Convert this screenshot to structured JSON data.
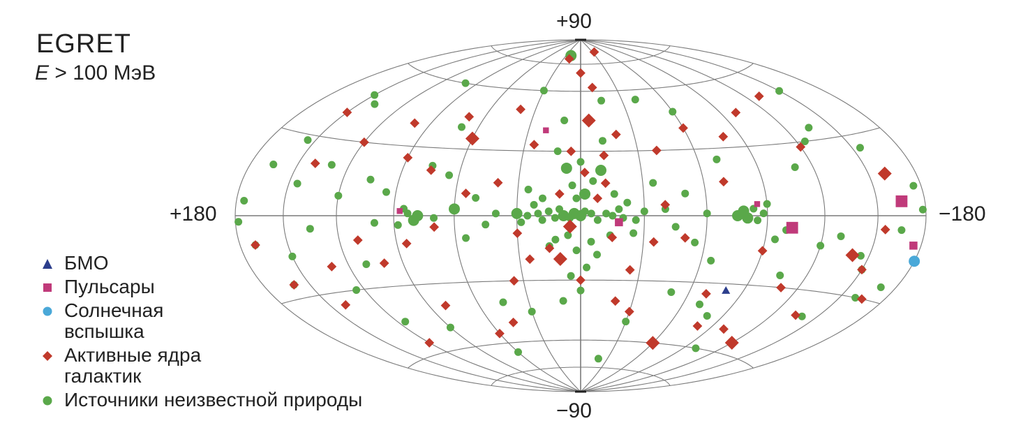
{
  "title": "EGRET",
  "subtitle": {
    "symbol": "E",
    "text": " > 100 МэВ"
  },
  "axis_labels": {
    "top": "+90",
    "bottom": "−90",
    "left": "+180",
    "right": "−180"
  },
  "colors": {
    "grid": "#7a7a7a",
    "agn": "#c0392b",
    "unknown": "#5aa84a",
    "pulsar": "#c03a7a",
    "flare": "#4aa8d8",
    "lmc": "#2c3e8c"
  },
  "legend": [
    {
      "key": "lmc",
      "shape": "triangle",
      "label_lines": [
        "БМО"
      ]
    },
    {
      "key": "pulsar",
      "shape": "square",
      "label_lines": [
        "Пульсары"
      ]
    },
    {
      "key": "flare",
      "shape": "circle",
      "label_lines": [
        "Солнечная",
        "вспышка"
      ]
    },
    {
      "key": "agn",
      "shape": "diamond",
      "label_lines": [
        "Активные ядра",
        "галактик"
      ]
    },
    {
      "key": "unknown",
      "shape": "circle",
      "label_lines": [
        "Источники неизвестной природы"
      ]
    }
  ],
  "chart_data": {
    "type": "scatter",
    "projection": "hammer-aitoff",
    "coordinates": "galactic",
    "lon_range": [
      180,
      -180
    ],
    "lat_range": [
      -90,
      90
    ],
    "grid": {
      "meridian_step_deg": 30,
      "parallel_step_deg": 30
    },
    "series": [
      {
        "name": "Источники неизвестной природы",
        "key": "unknown",
        "shape": "circle",
        "points": [
          [
            0,
            0,
            3
          ],
          [
            3,
            1,
            3
          ],
          [
            -2,
            2,
            2
          ],
          [
            5,
            -1,
            2
          ],
          [
            -5,
            1,
            2
          ],
          [
            8,
            0,
            3
          ],
          [
            10,
            3,
            2
          ],
          [
            -8,
            -2,
            2
          ],
          [
            12,
            -1,
            2
          ],
          [
            15,
            2,
            2
          ],
          [
            -12,
            1,
            2
          ],
          [
            -15,
            0,
            2
          ],
          [
            18,
            -2,
            2
          ],
          [
            20,
            1,
            2
          ],
          [
            -18,
            3,
            2
          ],
          [
            -20,
            -1,
            2
          ],
          [
            22,
            5,
            2
          ],
          [
            -22,
            6,
            2
          ],
          [
            25,
            0,
            2
          ],
          [
            28,
            -3,
            2
          ],
          [
            30,
            1,
            3
          ],
          [
            -26,
            -2,
            2
          ],
          [
            -30,
            2,
            2
          ],
          [
            2,
            8,
            2
          ],
          [
            -2,
            10,
            3
          ],
          [
            4,
            14,
            2
          ],
          [
            -6,
            16,
            2
          ],
          [
            7,
            22,
            3
          ],
          [
            -10,
            21,
            3
          ],
          [
            0,
            25,
            2
          ],
          [
            6,
            -9,
            2
          ],
          [
            -5,
            -12,
            2
          ],
          [
            2,
            -16,
            2
          ],
          [
            -8,
            -18,
            2
          ],
          [
            12,
            -11,
            2
          ],
          [
            15,
            -14,
            2
          ],
          [
            -14,
            -9,
            2
          ],
          [
            -3,
            -24,
            2
          ],
          [
            5,
            -28,
            2
          ],
          [
            18,
            8,
            2
          ],
          [
            -16,
            10,
            2
          ],
          [
            25,
            12,
            2
          ],
          [
            -25,
            -8,
            2
          ],
          [
            12,
            30,
            2
          ],
          [
            -12,
            35,
            2
          ],
          [
            40,
            1,
            2
          ],
          [
            45,
            -4,
            2
          ],
          [
            -40,
            3,
            2
          ],
          [
            -45,
            -5,
            2
          ],
          [
            50,
            8,
            2
          ],
          [
            55,
            -10,
            2
          ],
          [
            -50,
            10,
            2
          ],
          [
            -55,
            -12,
            2
          ],
          [
            60,
            3,
            3
          ],
          [
            65,
            18,
            2
          ],
          [
            -60,
            1,
            2
          ],
          [
            -65,
            -20,
            2
          ],
          [
            70,
            -1,
            2
          ],
          [
            75,
            22,
            2
          ],
          [
            -70,
            25,
            2
          ],
          [
            78,
            0,
            3
          ],
          [
            80,
            -2,
            3
          ],
          [
            83,
            1,
            2
          ],
          [
            85,
            3,
            2
          ],
          [
            88,
            -4,
            2
          ],
          [
            -75,
            0,
            3
          ],
          [
            -78,
            2,
            3
          ],
          [
            -80,
            -1,
            3
          ],
          [
            -83,
            3,
            2
          ],
          [
            -85,
            -2,
            2
          ],
          [
            -88,
            1,
            2
          ],
          [
            -90,
            5,
            2
          ],
          [
            95,
            10,
            2
          ],
          [
            100,
            -3,
            2
          ],
          [
            -95,
            -10,
            2
          ],
          [
            -100,
            -6,
            2
          ],
          [
            105,
            15,
            2
          ],
          [
            110,
            -20,
            2
          ],
          [
            -110,
            20,
            2
          ],
          [
            -105,
            -25,
            2
          ],
          [
            120,
            8,
            2
          ],
          [
            -120,
            -12,
            2
          ],
          [
            125,
            -30,
            2
          ],
          [
            -125,
            30,
            2
          ],
          [
            130,
            20,
            2
          ],
          [
            135,
            -5,
            2
          ],
          [
            -130,
            -8,
            2
          ],
          [
            -135,
            35,
            2
          ],
          [
            140,
            45,
            2
          ],
          [
            -140,
            -40,
            2
          ],
          [
            145,
            12,
            2
          ],
          [
            150,
            -15,
            2
          ],
          [
            -145,
            -15,
            2
          ],
          [
            -150,
            -20,
            2
          ],
          [
            155,
            28,
            2
          ],
          [
            160,
            -25,
            2
          ],
          [
            -155,
            25,
            2
          ],
          [
            -160,
            -30,
            2
          ],
          [
            165,
            18,
            2
          ],
          [
            170,
            -10,
            2
          ],
          [
            175,
            5,
            2
          ],
          [
            -165,
            -5,
            2
          ],
          [
            -170,
            -25,
            2
          ],
          [
            -175,
            10,
            2
          ],
          [
            20,
            80,
            3
          ],
          [
            30,
            60,
            2
          ],
          [
            -40,
            55,
            2
          ],
          [
            -60,
            48,
            2
          ],
          [
            100,
            60,
            2
          ],
          [
            -100,
            -60,
            2
          ],
          [
            60,
            -65,
            2
          ],
          [
            -20,
            -70,
            2
          ],
          [
            -30,
            -50,
            2
          ],
          [
            30,
            -45,
            2
          ],
          [
            45,
            -40,
            2
          ],
          [
            -50,
            -35,
            2
          ],
          [
            -80,
            -45,
            2
          ],
          [
            90,
            -50,
            2
          ],
          [
            115,
            -45,
            2
          ],
          [
            150,
            48,
            2
          ],
          [
            -150,
            50,
            2
          ],
          [
            178,
            -2,
            2
          ],
          [
            -178,
            2,
            2
          ],
          [
            0,
            -35,
            2
          ],
          [
            10,
            -40,
            2
          ],
          [
            -70,
            -40,
            2
          ],
          [
            70,
            40,
            2
          ],
          [
            10,
            45,
            2
          ],
          [
            -15,
            55,
            2
          ],
          [
            -35,
            15,
            2
          ]
        ]
      },
      {
        "name": "Активные ядра галактик",
        "key": "agn",
        "shape": "diamond",
        "points": [
          [
            -10,
            62,
            2
          ],
          [
            20,
            78,
            2
          ],
          [
            -35,
            82,
            2
          ],
          [
            0,
            70,
            2
          ],
          [
            40,
            50,
            2
          ],
          [
            -5,
            45,
            3
          ],
          [
            -20,
            38,
            2
          ],
          [
            25,
            33,
            2
          ],
          [
            -12,
            28,
            2
          ],
          [
            -40,
            30,
            2
          ],
          [
            60,
            35,
            3
          ],
          [
            70,
            45,
            2
          ],
          [
            -60,
            40,
            2
          ],
          [
            -80,
            35,
            2
          ],
          [
            100,
            40,
            2
          ],
          [
            -100,
            45,
            2
          ],
          [
            120,
            30,
            2
          ],
          [
            -120,
            28,
            2
          ],
          [
            140,
            20,
            2
          ],
          [
            150,
            40,
            2
          ],
          [
            -140,
            -15,
            3
          ],
          [
            -150,
            -20,
            2
          ],
          [
            160,
            -25,
            2
          ],
          [
            170,
            -10,
            2
          ],
          [
            -165,
            -30,
            2
          ],
          [
            -160,
            15,
            3
          ],
          [
            -155,
            -5,
            2
          ],
          [
            -130,
            50,
            2
          ],
          [
            130,
            -20,
            2
          ],
          [
            110,
            -10,
            2
          ],
          [
            -110,
            -30,
            2
          ],
          [
            -100,
            -50,
            2
          ],
          [
            -60,
            -60,
            3
          ],
          [
            -30,
            -45,
            2
          ],
          [
            -20,
            -40,
            2
          ],
          [
            0,
            -30,
            2
          ],
          [
            10,
            -20,
            3
          ],
          [
            -15,
            -10,
            2
          ],
          [
            -8,
            8,
            2
          ],
          [
            -12,
            15,
            2
          ],
          [
            5,
            -5,
            3
          ],
          [
            15,
            -15,
            2
          ],
          [
            25,
            -20,
            2
          ],
          [
            35,
            -30,
            2
          ],
          [
            45,
            -50,
            2
          ],
          [
            60,
            -55,
            2
          ],
          [
            80,
            -40,
            2
          ],
          [
            100,
            -20,
            2
          ],
          [
            120,
            -55,
            2
          ],
          [
            140,
            -35,
            2
          ],
          [
            -70,
            -35,
            2
          ],
          [
            -80,
            -50,
            2
          ],
          [
            -90,
            -15,
            2
          ],
          [
            -120,
            -55,
            3
          ],
          [
            -135,
            -40,
            2
          ],
          [
            75,
            20,
            2
          ],
          [
            90,
            25,
            2
          ],
          [
            -40,
            5,
            2
          ],
          [
            -50,
            -10,
            2
          ],
          [
            -70,
            15,
            2
          ],
          [
            40,
            15,
            2
          ],
          [
            55,
            10,
            2
          ],
          [
            70,
            -5,
            2
          ],
          [
            85,
            -12,
            2
          ],
          [
            -25,
            -25,
            2
          ],
          [
            -35,
            -12,
            2
          ],
          [
            30,
            -8,
            2
          ],
          [
            10,
            10,
            2
          ],
          [
            -2,
            20,
            2
          ],
          [
            5,
            30,
            2
          ]
        ]
      },
      {
        "name": "Пульсары",
        "key": "pulsar",
        "shape": "square",
        "points": [
          [
            -18,
            -3,
            2
          ],
          [
            -103,
            -5,
            3
          ],
          [
            87,
            2,
            1
          ],
          [
            -85,
            5,
            1
          ],
          [
            -165,
            5,
            3
          ],
          [
            -175,
            -10,
            2
          ],
          [
            20,
            40,
            1
          ]
        ]
      },
      {
        "name": "Солнечная вспышка",
        "key": "flare",
        "shape": "circle",
        "points": [
          [
            -180,
            -15,
            3
          ]
        ]
      },
      {
        "name": "БМО",
        "key": "lmc",
        "shape": "triangle",
        "points": [
          [
            -80,
            -33,
            2
          ]
        ]
      }
    ]
  }
}
